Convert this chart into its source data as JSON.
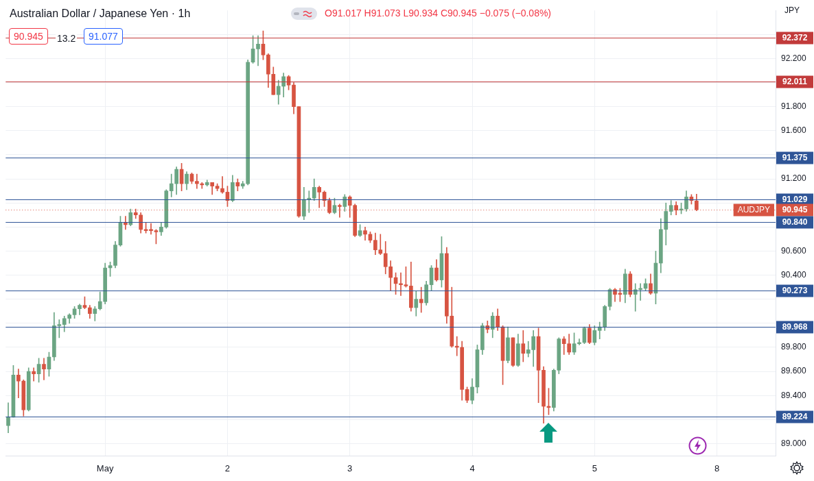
{
  "chart_data": {
    "type": "candlestick",
    "title": "Australian Dollar / Japanese Yen · 1h",
    "ylabel": "JPY",
    "annotations": [
      "O91.017 H91.073 L90.934 C90.945 −0.075 (−0.08%)",
      "90.945",
      "13.2",
      "91.077",
      {
        "text": "AUDJPY",
        "y": 90.945
      }
    ],
    "categories": [
      null,
      null,
      null,
      null,
      null,
      null,
      null,
      null,
      null,
      null,
      null,
      null,
      null,
      null,
      null,
      null,
      null,
      null,
      null,
      "May",
      null,
      null,
      null,
      null,
      null,
      null,
      null,
      null,
      null,
      null,
      null,
      null,
      null,
      null,
      null,
      null,
      null,
      null,
      null,
      null,
      null,
      null,
      null,
      "2",
      null,
      null,
      null,
      null,
      null,
      null,
      null,
      null,
      null,
      null,
      null,
      null,
      null,
      null,
      null,
      null,
      null,
      null,
      null,
      null,
      null,
      null,
      null,
      "3",
      null,
      null,
      null,
      null,
      null,
      null,
      null,
      null,
      null,
      null,
      null,
      null,
      null,
      null,
      null,
      null,
      null,
      null,
      null,
      null,
      null,
      null,
      null,
      "4",
      null,
      null,
      null,
      null,
      null,
      null,
      null,
      null,
      null,
      null,
      null,
      null,
      null,
      null,
      null,
      null,
      null,
      null,
      null,
      null,
      null,
      null,
      null,
      "5",
      null,
      null,
      null,
      null,
      null,
      null,
      null,
      null,
      null,
      null,
      null,
      null,
      null,
      null,
      null,
      null,
      null,
      null,
      null,
      null,
      null,
      null,
      null,
      "8",
      null,
      null,
      null,
      null,
      null,
      null,
      null,
      null,
      null,
      null,
      null
    ],
    "ohlc": [
      [
        89.15,
        89.34,
        89.09,
        89.22
      ],
      [
        89.22,
        89.65,
        89.22,
        89.57
      ],
      [
        89.57,
        89.62,
        89.38,
        89.52
      ],
      [
        89.52,
        89.53,
        89.23,
        89.28
      ],
      [
        89.28,
        89.63,
        89.27,
        89.6
      ],
      [
        89.6,
        89.63,
        89.52,
        89.58
      ],
      [
        89.58,
        89.71,
        89.51,
        89.66
      ],
      [
        89.66,
        89.71,
        89.53,
        89.62
      ],
      [
        89.62,
        89.76,
        89.56,
        89.72
      ],
      [
        89.72,
        90.09,
        89.69,
        89.98
      ],
      [
        89.98,
        90.03,
        89.88,
        89.99
      ],
      [
        89.99,
        90.06,
        89.93,
        90.04
      ],
      [
        90.04,
        90.08,
        90.0,
        90.07
      ],
      [
        90.07,
        90.14,
        90.04,
        90.12
      ],
      [
        90.12,
        90.16,
        90.07,
        90.15
      ],
      [
        90.15,
        90.22,
        90.12,
        90.13
      ],
      [
        90.13,
        90.15,
        90.04,
        90.08
      ],
      [
        90.08,
        90.14,
        90.02,
        90.12
      ],
      [
        90.12,
        90.26,
        90.11,
        90.18
      ],
      [
        90.18,
        90.5,
        90.16,
        90.46
      ],
      [
        90.46,
        90.51,
        90.39,
        90.48
      ],
      [
        90.48,
        90.68,
        90.46,
        90.65
      ],
      [
        90.65,
        90.89,
        90.64,
        90.84
      ],
      [
        90.84,
        90.89,
        90.78,
        90.82
      ],
      [
        90.82,
        90.95,
        90.81,
        90.92
      ],
      [
        90.92,
        90.95,
        90.87,
        90.9
      ],
      [
        90.9,
        90.92,
        90.75,
        90.78
      ],
      [
        90.78,
        90.84,
        90.75,
        90.77
      ],
      [
        90.78,
        90.83,
        90.74,
        90.77
      ],
      [
        90.77,
        90.78,
        90.66,
        90.76
      ],
      [
        90.76,
        90.84,
        90.73,
        90.8
      ],
      [
        90.8,
        91.11,
        90.79,
        91.1
      ],
      [
        91.1,
        91.24,
        91.05,
        91.16
      ],
      [
        91.16,
        91.3,
        91.07,
        91.28
      ],
      [
        91.28,
        91.33,
        91.1,
        91.16
      ],
      [
        91.16,
        91.26,
        91.11,
        91.24
      ],
      [
        91.24,
        91.25,
        91.16,
        91.18
      ],
      [
        91.18,
        91.24,
        91.12,
        91.16
      ],
      [
        91.16,
        91.17,
        91.12,
        91.15
      ],
      [
        91.15,
        91.19,
        91.14,
        91.17
      ],
      [
        91.17,
        91.17,
        91.07,
        91.14
      ],
      [
        91.14,
        91.16,
        91.1,
        91.12
      ],
      [
        91.12,
        91.22,
        91.08,
        91.09
      ],
      [
        91.09,
        91.14,
        90.97,
        91.02
      ],
      [
        91.02,
        91.23,
        91.01,
        91.17
      ],
      [
        91.17,
        91.2,
        91.1,
        91.14
      ],
      [
        91.14,
        91.18,
        91.12,
        91.16
      ],
      [
        91.16,
        92.19,
        91.15,
        92.17
      ],
      [
        92.17,
        92.39,
        92.16,
        92.28
      ],
      [
        92.28,
        92.39,
        92.14,
        92.32
      ],
      [
        92.32,
        92.43,
        92.19,
        92.23
      ],
      [
        92.23,
        92.24,
        91.96,
        92.07
      ],
      [
        92.07,
        92.13,
        91.9,
        91.9
      ],
      [
        91.9,
        92.02,
        91.82,
        91.97
      ],
      [
        91.97,
        92.08,
        91.88,
        92.05
      ],
      [
        92.05,
        92.06,
        91.94,
        91.98
      ],
      [
        91.98,
        92.0,
        91.74,
        91.8
      ],
      [
        91.8,
        91.8,
        90.88,
        90.89
      ],
      [
        90.89,
        91.13,
        90.86,
        91.03
      ],
      [
        91.03,
        91.1,
        90.92,
        91.04
      ],
      [
        91.04,
        91.2,
        91.02,
        91.13
      ],
      [
        91.13,
        91.14,
        90.96,
        91.09
      ],
      [
        91.09,
        91.1,
        90.97,
        91.02
      ],
      [
        91.02,
        91.04,
        90.91,
        90.92
      ],
      [
        90.92,
        91.04,
        90.91,
        90.98
      ],
      [
        90.98,
        90.99,
        90.88,
        90.97
      ],
      [
        90.97,
        91.07,
        90.93,
        91.05
      ],
      [
        91.05,
        91.06,
        90.88,
        90.98
      ],
      [
        90.98,
        90.99,
        90.72,
        90.73
      ],
      [
        90.73,
        90.82,
        90.72,
        90.77
      ],
      [
        90.77,
        90.8,
        90.69,
        90.74
      ],
      [
        90.74,
        90.76,
        90.67,
        90.69
      ],
      [
        90.69,
        90.75,
        90.57,
        90.61
      ],
      [
        90.61,
        90.74,
        90.57,
        90.58
      ],
      [
        90.58,
        90.68,
        90.41,
        90.47
      ],
      [
        90.47,
        90.52,
        90.27,
        90.38
      ],
      [
        90.38,
        90.42,
        90.24,
        90.33
      ],
      [
        90.33,
        90.42,
        90.23,
        90.32
      ],
      [
        90.32,
        90.47,
        90.3,
        90.31
      ],
      [
        90.31,
        90.51,
        90.1,
        90.13
      ],
      [
        90.13,
        90.27,
        90.06,
        90.2
      ],
      [
        90.2,
        90.3,
        90.09,
        90.17
      ],
      [
        90.17,
        90.35,
        90.15,
        90.32
      ],
      [
        90.32,
        90.48,
        90.27,
        90.46
      ],
      [
        90.46,
        90.53,
        90.35,
        90.36
      ],
      [
        90.36,
        90.72,
        90.3,
        90.58
      ],
      [
        90.58,
        90.63,
        90.0,
        90.06
      ],
      [
        90.06,
        90.3,
        89.8,
        89.81
      ],
      [
        89.81,
        89.89,
        89.73,
        89.8
      ],
      [
        89.8,
        89.85,
        89.36,
        89.45
      ],
      [
        89.45,
        89.47,
        89.34,
        89.36
      ],
      [
        89.36,
        89.54,
        89.33,
        89.47
      ],
      [
        89.47,
        89.82,
        89.42,
        89.78
      ],
      [
        89.78,
        90.0,
        89.74,
        89.98
      ],
      [
        89.98,
        90.02,
        89.92,
        89.95
      ],
      [
        89.95,
        90.09,
        89.88,
        90.06
      ],
      [
        90.06,
        90.12,
        89.94,
        89.97
      ],
      [
        89.97,
        89.98,
        89.49,
        89.69
      ],
      [
        89.69,
        89.97,
        89.67,
        89.88
      ],
      [
        89.88,
        89.88,
        89.64,
        89.65
      ],
      [
        89.65,
        89.91,
        89.64,
        89.83
      ],
      [
        89.83,
        89.94,
        89.68,
        89.75
      ],
      [
        89.75,
        89.85,
        89.72,
        89.78
      ],
      [
        89.78,
        89.94,
        89.64,
        89.89
      ],
      [
        89.89,
        89.96,
        89.34,
        89.61
      ],
      [
        89.61,
        89.64,
        89.17,
        89.31
      ],
      [
        89.31,
        89.46,
        89.24,
        89.3
      ],
      [
        89.3,
        89.62,
        89.27,
        89.61
      ],
      [
        89.61,
        89.88,
        89.58,
        89.87
      ],
      [
        89.87,
        89.89,
        89.74,
        89.83
      ],
      [
        89.83,
        89.91,
        89.74,
        89.76
      ],
      [
        89.76,
        89.92,
        89.74,
        89.83
      ],
      [
        89.83,
        89.87,
        89.82,
        89.84
      ],
      [
        89.84,
        89.97,
        89.83,
        89.96
      ],
      [
        89.96,
        89.99,
        89.83,
        89.84
      ],
      [
        89.84,
        89.98,
        89.82,
        89.94
      ],
      [
        89.94,
        90.01,
        89.87,
        89.97
      ],
      [
        89.97,
        90.15,
        89.94,
        90.14
      ],
      [
        90.14,
        90.29,
        90.11,
        90.28
      ],
      [
        90.28,
        90.29,
        90.18,
        90.24
      ],
      [
        90.25,
        90.29,
        90.18,
        90.24
      ],
      [
        90.24,
        90.45,
        90.17,
        90.41
      ],
      [
        90.41,
        90.43,
        90.22,
        90.24
      ],
      [
        90.24,
        90.33,
        90.1,
        90.28
      ],
      [
        90.28,
        90.33,
        90.19,
        90.29
      ],
      [
        90.29,
        90.37,
        90.27,
        90.33
      ],
      [
        90.33,
        90.41,
        90.24,
        90.25
      ],
      [
        90.25,
        90.6,
        90.16,
        90.5
      ],
      [
        90.5,
        90.87,
        90.42,
        90.78
      ],
      [
        90.78,
        91.0,
        90.65,
        90.93
      ],
      [
        90.93,
        91.02,
        90.9,
        90.98
      ],
      [
        90.98,
        91.01,
        90.9,
        90.94
      ],
      [
        90.94,
        91.0,
        90.91,
        90.95
      ],
      [
        90.95,
        91.1,
        90.93,
        91.05
      ],
      [
        91.05,
        91.07,
        90.99,
        91.02
      ],
      [
        91.017,
        91.073,
        90.934,
        90.945
      ],
      null,
      null,
      null,
      null,
      null,
      null,
      null,
      null,
      null,
      null,
      null,
      null,
      null,
      null,
      null
    ],
    "colors": [
      "#6ba583",
      "#6ba583",
      "#d75442",
      "#d75442",
      "#6ba583",
      "#d75442",
      "#6ba583",
      "#d75442",
      "#6ba583",
      "#6ba583",
      "#6ba583",
      "#6ba583",
      "#6ba583",
      "#6ba583",
      "#6ba583",
      "#d75442",
      "#d75442",
      "#6ba583",
      "#6ba583",
      "#6ba583",
      "#6ba583",
      "#6ba583",
      "#6ba583",
      "#d75442",
      "#6ba583",
      "#d75442",
      "#d75442",
      "#d75442",
      "#d75442",
      "#d75442",
      "#6ba583",
      "#6ba583",
      "#6ba583",
      "#6ba583",
      "#d75442",
      "#6ba583",
      "#d75442",
      "#d75442",
      "#d75442",
      "#6ba583",
      "#d75442",
      "#d75442",
      "#d75442",
      "#d75442",
      "#6ba583",
      "#d75442",
      "#6ba583",
      "#6ba583",
      "#6ba583",
      "#6ba583",
      "#d75442",
      "#d75442",
      "#d75442",
      "#6ba583",
      "#6ba583",
      "#d75442",
      "#d75442",
      "#d75442",
      "#6ba583",
      "#6ba583",
      "#6ba583",
      "#d75442",
      "#d75442",
      "#d75442",
      "#6ba583",
      "#d75442",
      "#6ba583",
      "#d75442",
      "#d75442",
      "#6ba583",
      "#d75442",
      "#d75442",
      "#d75442",
      "#d75442",
      "#d75442",
      "#d75442",
      "#d75442",
      "#d75442",
      "#d75442",
      "#d75442",
      "#6ba583",
      "#d75442",
      "#6ba583",
      "#6ba583",
      "#d75442",
      "#6ba583",
      "#d75442",
      "#d75442",
      "#d75442",
      "#d75442",
      "#d75442",
      "#6ba583",
      "#6ba583",
      "#6ba583",
      "#d75442",
      "#6ba583",
      "#d75442",
      "#d75442",
      "#6ba583",
      "#d75442",
      "#6ba583",
      "#d75442",
      "#6ba583",
      "#6ba583",
      "#d75442",
      "#d75442",
      "#d75442",
      "#6ba583",
      "#6ba583",
      "#d75442",
      "#d75442",
      "#6ba583",
      "#6ba583",
      "#6ba583",
      "#d75442",
      "#6ba583",
      "#6ba583",
      "#6ba583",
      "#6ba583",
      "#d75442",
      "#d75442",
      "#6ba583",
      "#d75442",
      "#6ba583",
      "#6ba583",
      "#6ba583",
      "#d75442",
      "#6ba583",
      "#6ba583",
      "#6ba583",
      "#6ba583",
      "#d75442",
      "#6ba583",
      "#6ba583",
      "#d75442",
      "#d75442",
      null,
      null,
      null,
      null,
      null,
      null,
      null,
      null,
      null,
      null,
      null,
      null,
      null,
      null,
      null
    ],
    "ylim": [
      88.9,
      92.6
    ],
    "yticks": [
      {
        "value": 89.0,
        "label": "89.000"
      },
      {
        "value": 89.2,
        "label": null
      },
      {
        "value": 89.4,
        "label": "89.400"
      },
      {
        "value": 89.6,
        "label": "89.600"
      },
      {
        "value": 89.8,
        "label": "89.800"
      },
      {
        "value": 90.0,
        "label": null
      },
      {
        "value": 90.2,
        "label": null
      },
      {
        "value": 90.4,
        "label": "90.400"
      },
      {
        "value": 90.6,
        "label": "90.600"
      },
      {
        "value": 90.8,
        "label": null
      },
      {
        "value": 91.0,
        "label": null
      },
      {
        "value": 91.2,
        "label": "91.200"
      },
      {
        "value": 91.4,
        "label": null
      },
      {
        "value": 91.6,
        "label": "91.600"
      },
      {
        "value": 91.8,
        "label": "91.800"
      },
      {
        "value": 92.0,
        "label": null
      },
      {
        "value": 92.2,
        "label": "92.200"
      },
      {
        "value": 92.4,
        "label": null
      }
    ],
    "ref_lines": [
      {
        "axis": "y",
        "value": 92.372,
        "label": "92.372",
        "color": "#c23b3b"
      },
      {
        "axis": "y",
        "value": 92.011,
        "label": "92.011",
        "color": "#c23b3b"
      },
      {
        "axis": "y",
        "value": 91.375,
        "label": "91.375",
        "color": "#2f5597"
      },
      {
        "axis": "y",
        "value": 91.029,
        "label": "91.029",
        "color": "#2f5597"
      },
      {
        "axis": "y",
        "value": 90.945,
        "label": "90.945",
        "color": "#d75442",
        "line_style": "dotted"
      },
      {
        "axis": "y",
        "value": 90.84,
        "label": "90.840",
        "color": "#2f5597"
      },
      {
        "axis": "y",
        "value": 90.273,
        "label": "90.273",
        "color": "#2f5597"
      },
      {
        "axis": "y",
        "value": 89.968,
        "label": "89.968",
        "color": "#2f5597"
      },
      {
        "axis": "y",
        "value": 89.224,
        "label": "89.224",
        "color": "#2f5597"
      }
    ],
    "grid": true,
    "legend": false
  }
}
